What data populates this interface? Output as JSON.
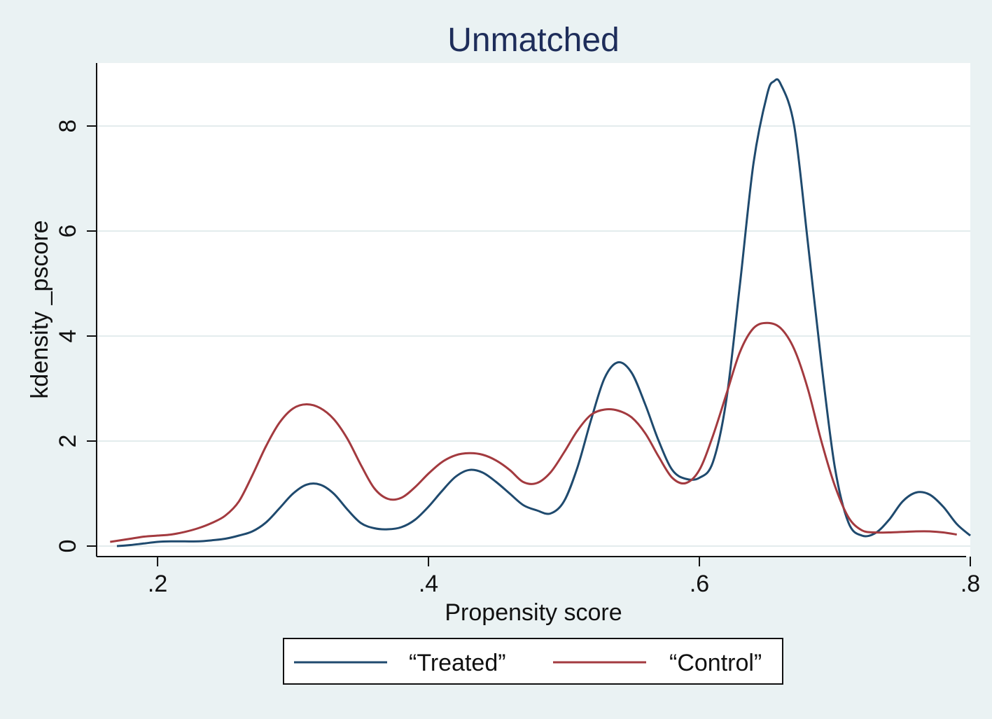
{
  "chart_data": {
    "type": "line",
    "title": "Unmatched",
    "xlabel": "Propensity score",
    "ylabel": "kdensity _pscore",
    "xlim": [
      0.155,
      0.8
    ],
    "ylim": [
      -0.2,
      9.2
    ],
    "x_ticks": [
      0.2,
      0.4,
      0.6,
      0.8
    ],
    "x_tick_labels": [
      ".2",
      ".4",
      ".6",
      ".8"
    ],
    "y_ticks": [
      0,
      2,
      4,
      6,
      8
    ],
    "y_tick_labels": [
      "0",
      "2",
      "4",
      "6",
      "8"
    ],
    "grid": true,
    "legend_position": "bottom",
    "series": [
      {
        "name": "“Treated”",
        "color": "#1f4a6e",
        "points": [
          [
            0.17,
            0.0
          ],
          [
            0.18,
            0.02
          ],
          [
            0.19,
            0.05
          ],
          [
            0.2,
            0.08
          ],
          [
            0.21,
            0.09
          ],
          [
            0.22,
            0.09
          ],
          [
            0.23,
            0.09
          ],
          [
            0.24,
            0.11
          ],
          [
            0.25,
            0.14
          ],
          [
            0.26,
            0.2
          ],
          [
            0.27,
            0.28
          ],
          [
            0.28,
            0.45
          ],
          [
            0.29,
            0.72
          ],
          [
            0.3,
            1.0
          ],
          [
            0.31,
            1.17
          ],
          [
            0.32,
            1.17
          ],
          [
            0.33,
            1.0
          ],
          [
            0.34,
            0.7
          ],
          [
            0.35,
            0.44
          ],
          [
            0.36,
            0.34
          ],
          [
            0.37,
            0.32
          ],
          [
            0.38,
            0.36
          ],
          [
            0.39,
            0.5
          ],
          [
            0.4,
            0.75
          ],
          [
            0.41,
            1.05
          ],
          [
            0.42,
            1.32
          ],
          [
            0.43,
            1.45
          ],
          [
            0.44,
            1.4
          ],
          [
            0.45,
            1.22
          ],
          [
            0.46,
            1.0
          ],
          [
            0.47,
            0.78
          ],
          [
            0.48,
            0.68
          ],
          [
            0.49,
            0.62
          ],
          [
            0.5,
            0.85
          ],
          [
            0.51,
            1.5
          ],
          [
            0.52,
            2.4
          ],
          [
            0.53,
            3.2
          ],
          [
            0.54,
            3.5
          ],
          [
            0.55,
            3.3
          ],
          [
            0.56,
            2.7
          ],
          [
            0.57,
            2.0
          ],
          [
            0.58,
            1.45
          ],
          [
            0.59,
            1.28
          ],
          [
            0.6,
            1.3
          ],
          [
            0.61,
            1.6
          ],
          [
            0.62,
            2.8
          ],
          [
            0.63,
            5.0
          ],
          [
            0.64,
            7.3
          ],
          [
            0.65,
            8.6
          ],
          [
            0.655,
            8.85
          ],
          [
            0.66,
            8.8
          ],
          [
            0.67,
            8.0
          ],
          [
            0.68,
            5.8
          ],
          [
            0.69,
            3.5
          ],
          [
            0.7,
            1.5
          ],
          [
            0.71,
            0.45
          ],
          [
            0.72,
            0.2
          ],
          [
            0.73,
            0.25
          ],
          [
            0.74,
            0.5
          ],
          [
            0.75,
            0.85
          ],
          [
            0.76,
            1.02
          ],
          [
            0.77,
            0.98
          ],
          [
            0.78,
            0.75
          ],
          [
            0.79,
            0.42
          ],
          [
            0.8,
            0.2
          ]
        ]
      },
      {
        "name": "“Control”",
        "color": "#a33a3f",
        "points": [
          [
            0.165,
            0.08
          ],
          [
            0.18,
            0.14
          ],
          [
            0.19,
            0.18
          ],
          [
            0.2,
            0.2
          ],
          [
            0.21,
            0.22
          ],
          [
            0.22,
            0.27
          ],
          [
            0.23,
            0.34
          ],
          [
            0.24,
            0.44
          ],
          [
            0.25,
            0.58
          ],
          [
            0.26,
            0.85
          ],
          [
            0.27,
            1.35
          ],
          [
            0.28,
            1.9
          ],
          [
            0.29,
            2.35
          ],
          [
            0.3,
            2.62
          ],
          [
            0.31,
            2.7
          ],
          [
            0.32,
            2.63
          ],
          [
            0.33,
            2.42
          ],
          [
            0.34,
            2.05
          ],
          [
            0.35,
            1.55
          ],
          [
            0.36,
            1.1
          ],
          [
            0.37,
            0.9
          ],
          [
            0.38,
            0.92
          ],
          [
            0.39,
            1.12
          ],
          [
            0.4,
            1.38
          ],
          [
            0.41,
            1.6
          ],
          [
            0.42,
            1.73
          ],
          [
            0.43,
            1.77
          ],
          [
            0.44,
            1.74
          ],
          [
            0.45,
            1.63
          ],
          [
            0.46,
            1.45
          ],
          [
            0.47,
            1.22
          ],
          [
            0.48,
            1.2
          ],
          [
            0.49,
            1.4
          ],
          [
            0.5,
            1.78
          ],
          [
            0.51,
            2.2
          ],
          [
            0.52,
            2.5
          ],
          [
            0.53,
            2.6
          ],
          [
            0.54,
            2.58
          ],
          [
            0.55,
            2.45
          ],
          [
            0.56,
            2.15
          ],
          [
            0.57,
            1.7
          ],
          [
            0.58,
            1.3
          ],
          [
            0.59,
            1.2
          ],
          [
            0.6,
            1.45
          ],
          [
            0.61,
            2.1
          ],
          [
            0.62,
            2.9
          ],
          [
            0.63,
            3.7
          ],
          [
            0.64,
            4.15
          ],
          [
            0.65,
            4.25
          ],
          [
            0.66,
            4.15
          ],
          [
            0.67,
            3.75
          ],
          [
            0.68,
            3.0
          ],
          [
            0.69,
            2.0
          ],
          [
            0.7,
            1.15
          ],
          [
            0.71,
            0.55
          ],
          [
            0.72,
            0.3
          ],
          [
            0.73,
            0.26
          ],
          [
            0.74,
            0.26
          ],
          [
            0.75,
            0.27
          ],
          [
            0.76,
            0.28
          ],
          [
            0.77,
            0.28
          ],
          [
            0.78,
            0.26
          ],
          [
            0.79,
            0.22
          ]
        ]
      }
    ]
  }
}
